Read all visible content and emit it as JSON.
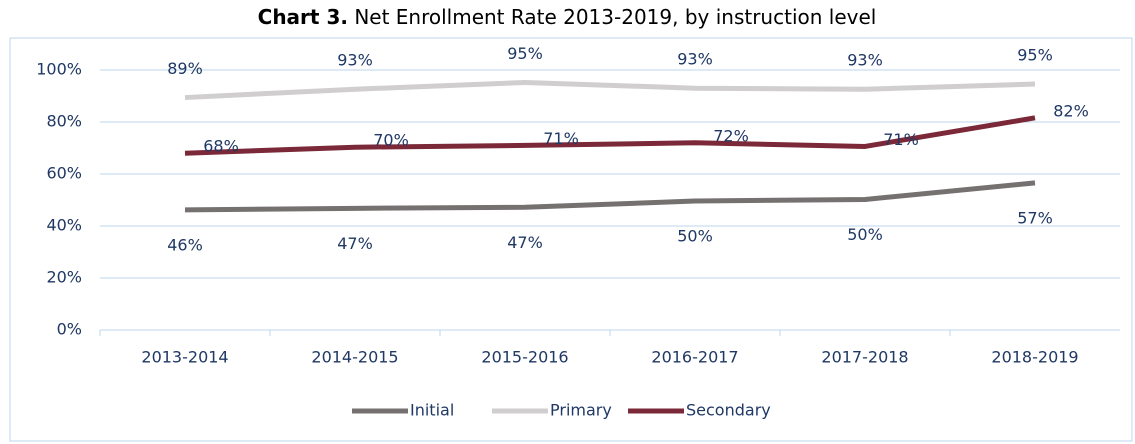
{
  "chart_data": {
    "type": "line",
    "title_label": "Chart 3.",
    "title": "Net Enrollment Rate 2013-2019, by instruction level",
    "categories": [
      "2013-2014",
      "2014-2015",
      "2015-2016",
      "2016-2017",
      "2017-2018",
      "2018-2019"
    ],
    "series": [
      {
        "name": "Initial",
        "color": "#767171",
        "values": [
          46.2,
          46.8,
          47.2,
          49.6,
          50.2,
          56.6
        ],
        "value_labels": [
          "46%",
          "47%",
          "47%",
          "50%",
          "50%",
          "57%"
        ]
      },
      {
        "name": "Primary",
        "color": "#d0cece",
        "values": [
          89.4,
          92.6,
          95.2,
          93.0,
          92.6,
          94.6
        ],
        "value_labels": [
          "89%",
          "93%",
          "95%",
          "93%",
          "93%",
          "95%"
        ]
      },
      {
        "name": "Secondary",
        "color": "#7b2838",
        "values": [
          68.0,
          70.3,
          71.0,
          72.0,
          70.6,
          81.6
        ],
        "value_labels": [
          "68%",
          "70%",
          "71%",
          "72%",
          "71%",
          "82%"
        ]
      }
    ],
    "ylim": [
      0,
      100
    ],
    "yticks": [
      {
        "value": 0,
        "label": "0%"
      },
      {
        "value": 20,
        "label": "20%"
      },
      {
        "value": 40,
        "label": "40%"
      },
      {
        "value": 60,
        "label": "60%"
      },
      {
        "value": 80,
        "label": "80%"
      },
      {
        "value": 100,
        "label": "100%"
      }
    ],
    "grid": true,
    "legend": "bottom"
  }
}
